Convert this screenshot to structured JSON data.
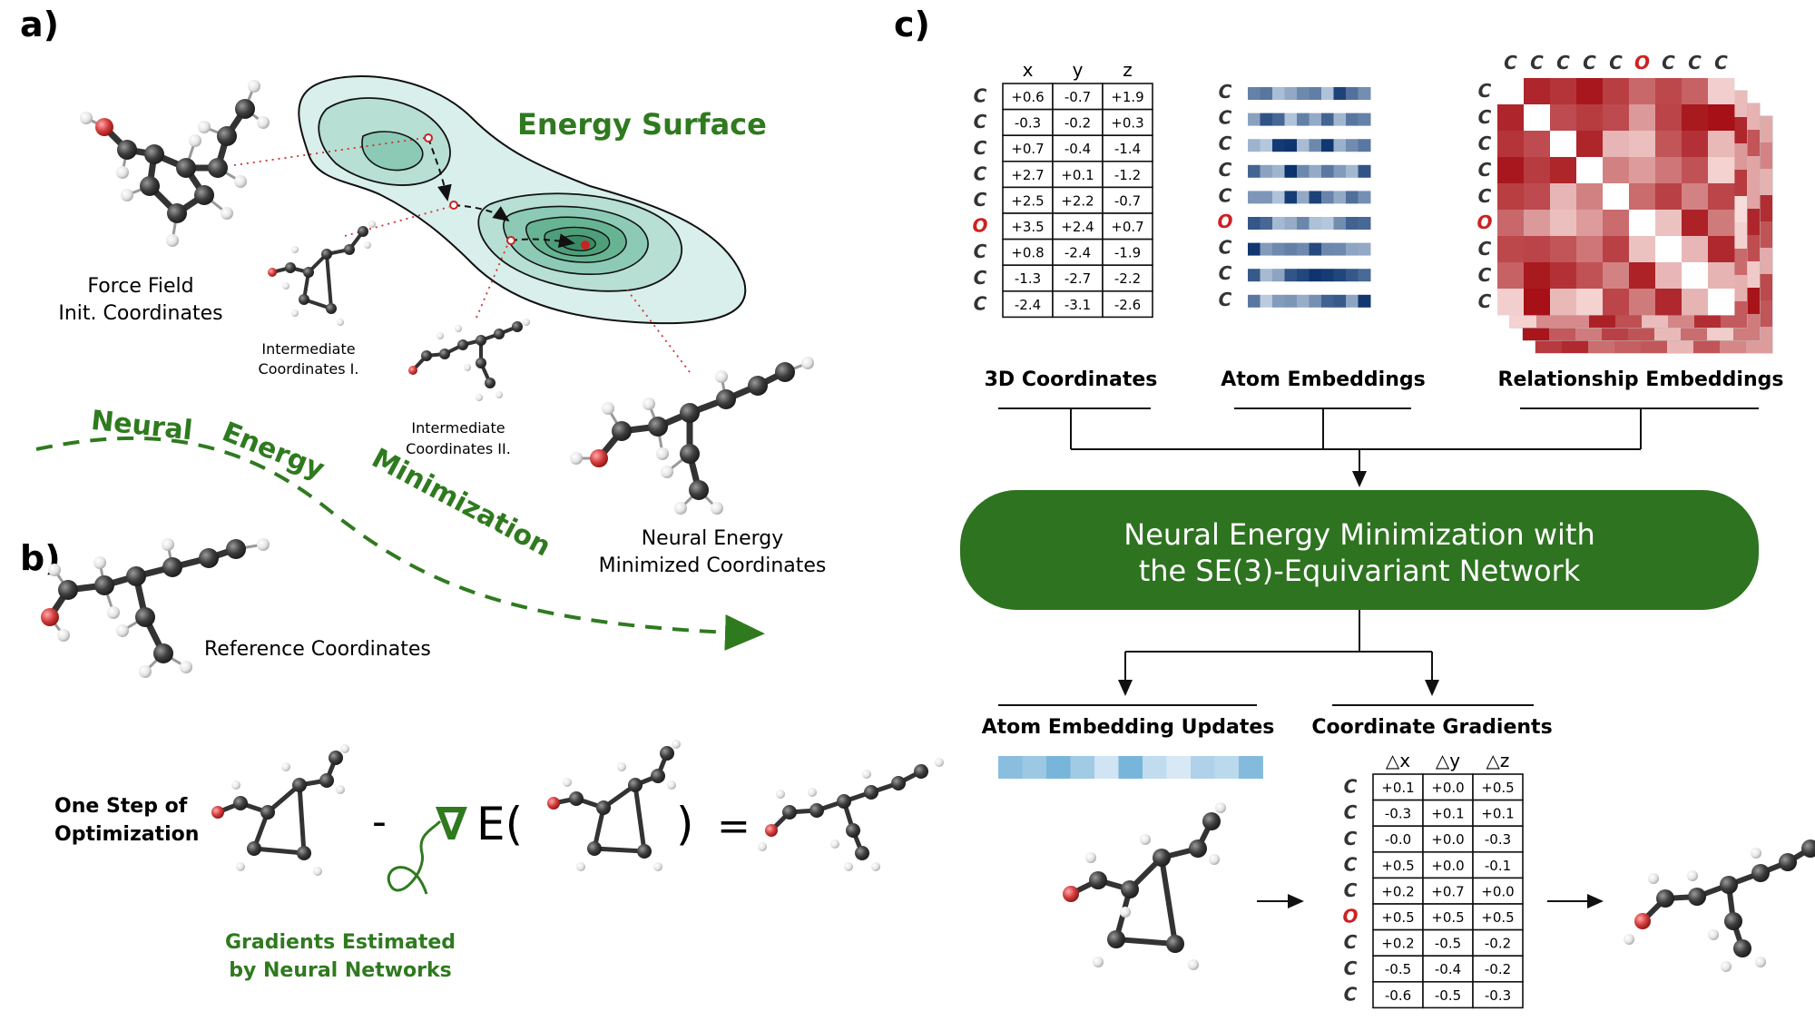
{
  "labels": {
    "a": "a)",
    "b": "b)",
    "c": "c)"
  },
  "panel_a": {
    "energy_surface": "Energy Surface",
    "force_field_line1": "Force Field",
    "force_field_line2": "Init. Coordinates",
    "intermediate1_line1": "Intermediate",
    "intermediate1_line2": "Coordinates I.",
    "intermediate2_line1": "Intermediate",
    "intermediate2_line2": "Coordinates II.",
    "neural_min_line1": "Neural Energy",
    "neural_min_line2": "Minimized Coordinates",
    "reference": "Reference Coordinates",
    "arrow_word1": "Neural",
    "arrow_word2": "Energy",
    "arrow_word3": "Minimization"
  },
  "panel_b": {
    "one_step_line1": "One Step of",
    "one_step_line2": "Optimization",
    "minus": "-",
    "nabla": "∇",
    "E_open": "E(",
    "close_paren": ")",
    "equals": "=",
    "gradients_line1": "Gradients Estimated",
    "gradients_line2": "by Neural Networks"
  },
  "panel_c": {
    "coords_title": "3D Coordinates",
    "atom_emb_title": "Atom Embeddings",
    "rel_emb_title": "Relationship Embeddings",
    "network_line1": "Neural Energy Minimization with",
    "network_line2": "the SE(3)-Equivariant Network",
    "updates_title": "Atom Embedding Updates",
    "gradients_title": "Coordinate Gradients",
    "atoms": [
      "C",
      "C",
      "C",
      "C",
      "C",
      "O",
      "C",
      "C",
      "C"
    ],
    "coord_headers": [
      "x",
      "y",
      "z"
    ],
    "coords": [
      [
        "+0.6",
        "-0.7",
        "+1.9"
      ],
      [
        "-0.3",
        "-0.2",
        "+0.3"
      ],
      [
        "+0.7",
        "-0.4",
        "-1.4"
      ],
      [
        "+2.7",
        "+0.1",
        "-1.2"
      ],
      [
        "+2.5",
        "+2.2",
        "-0.7"
      ],
      [
        "+3.5",
        "+2.4",
        "+0.7"
      ],
      [
        "+0.8",
        "-2.4",
        "-1.9"
      ],
      [
        "-1.3",
        "-2.7",
        "-2.2"
      ],
      [
        "-2.4",
        "-3.1",
        "-2.6"
      ]
    ],
    "grad_headers": [
      "△x",
      "△y",
      "△z"
    ],
    "grads": [
      [
        "+0.1",
        "+0.0",
        "+0.5"
      ],
      [
        "-0.3",
        "+0.1",
        "+0.1"
      ],
      [
        "-0.0",
        "+0.0",
        "-0.3"
      ],
      [
        "+0.5",
        "+0.0",
        "-0.1"
      ],
      [
        "+0.2",
        "+0.7",
        "+0.0"
      ],
      [
        "+0.5",
        "+0.5",
        "+0.5"
      ],
      [
        "+0.2",
        "-0.5",
        "-0.2"
      ],
      [
        "-0.5",
        "-0.4",
        "-0.2"
      ],
      [
        "-0.6",
        "-0.5",
        "-0.3"
      ]
    ]
  },
  "colors": {
    "green_text": "#2f7a1f",
    "network_fill": "#2e7320",
    "atom_O_label": "#cc2222",
    "carbon": "#4a4a4a",
    "oxygen": "#d94040",
    "hydrogen": "#eeeeee",
    "contour_outer": "#d6eeea",
    "contour_inner": "#4e9e7a",
    "heat_high": "#a50f15",
    "heat_low": "#fff1ee",
    "blue_high": "#08306b",
    "blue_low": "#deebf7"
  }
}
